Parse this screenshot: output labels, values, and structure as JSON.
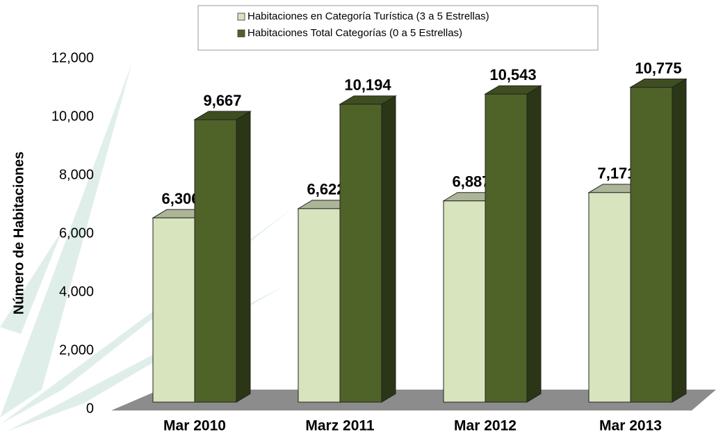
{
  "chart_data": {
    "type": "bar3d",
    "y_label": "Número de Habitaciones",
    "categories": [
      "Mar 2010",
      "Marz 2011",
      "Mar 2012",
      "Mar 2013"
    ],
    "series": [
      {
        "name": "Habitaciones en Categoría Turística (3 a 5 Estrellas)",
        "color": "#d7e4bd",
        "values": [
          6306,
          6622,
          6887,
          7171
        ],
        "value_labels": [
          "6,306",
          "6,622",
          "6,887",
          "7,171"
        ]
      },
      {
        "name": "Habitaciones Total Categorías (0 a 5 Estrellas)",
        "color": "#4f6228",
        "values": [
          9667,
          10194,
          10543,
          10775
        ],
        "value_labels": [
          "9,667",
          "10,194",
          "10,543",
          "10,775"
        ]
      }
    ],
    "ylim": [
      0,
      12000
    ],
    "yticks": [
      0,
      {
        "value": 2000,
        "label": "2,000"
      },
      {
        "value": 4000,
        "label": "4,000"
      },
      {
        "value": 6000,
        "label": "6,000"
      },
      {
        "value": 8000,
        "label": "8,000"
      },
      {
        "value": 10000,
        "label": "10,000"
      },
      {
        "value": 12000,
        "label": "12,000"
      }
    ],
    "legend": "top"
  }
}
